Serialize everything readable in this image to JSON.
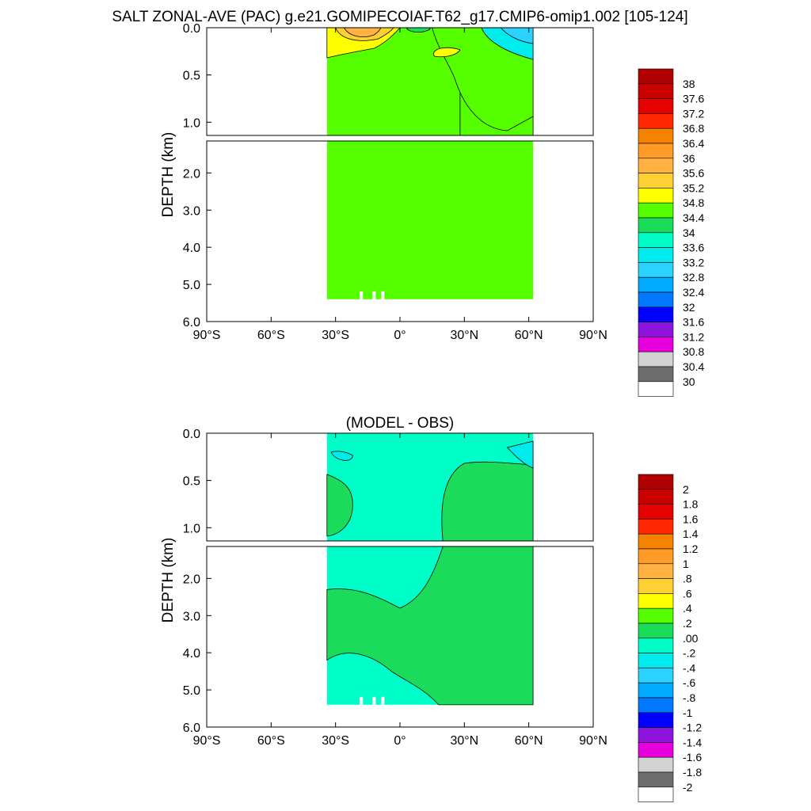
{
  "figure": {
    "title": "SALT ZONAL-AVE (PAC) g.e21.GOMIPECOIAF.T62_g17.CMIP6-omip1.002 [105-124]"
  },
  "chart_data": [
    {
      "type": "heatmap",
      "title": "",
      "ylabel": "DEPTH (km)",
      "xlabel": "",
      "x_range": [
        -90,
        90
      ],
      "y_range": [
        0,
        6
      ],
      "y_break": 1.14,
      "y_ticks_upper": [
        "0.0",
        "0.5",
        "1.0"
      ],
      "y_ticks_lower": [
        "2.0",
        "3.0",
        "4.0",
        "5.0",
        "6.0"
      ],
      "x_ticks": [
        "90°S",
        "60°S",
        "30°S",
        "0°",
        "30°N",
        "60°N",
        "90°N"
      ],
      "data_extent": {
        "lat_min": -34,
        "lat_max": 62,
        "max_depth_km": 5.4
      },
      "dominant_field_value": 34.6,
      "colorbar": {
        "labels": [
          "38",
          "37.6",
          "37.2",
          "36.8",
          "36.4",
          "36",
          "35.6",
          "35.2",
          "34.8",
          "34.4",
          "34",
          "33.6",
          "33.2",
          "32.8",
          "32.4",
          "32",
          "31.6",
          "31.2",
          "30.8",
          "30.4",
          "30"
        ],
        "colors": [
          "#b00000",
          "#c80000",
          "#e60000",
          "#ff2800",
          "#f58200",
          "#ff9b28",
          "#ffb142",
          "#ffd033",
          "#ffff00",
          "#55ff00",
          "#1adc5a",
          "#00ffc8",
          "#00ebeb",
          "#2ad3ff",
          "#00aaff",
          "#0078ff",
          "#0000ff",
          "#8c14dc",
          "#e600dc",
          "#d2d2d2",
          "#6e6e6e",
          "#ffffff"
        ]
      }
    },
    {
      "type": "heatmap",
      "title": "(MODEL - OBS)",
      "ylabel": "DEPTH (km)",
      "xlabel": "",
      "x_range": [
        -90,
        90
      ],
      "y_range": [
        0,
        6
      ],
      "y_break": 1.14,
      "y_ticks_upper": [
        "0.0",
        "0.5",
        "1.0"
      ],
      "y_ticks_lower": [
        "2.0",
        "3.0",
        "4.0",
        "5.0",
        "6.0"
      ],
      "x_ticks": [
        "90°S",
        "60°S",
        "30°S",
        "0°",
        "30°N",
        "60°N",
        "90°N"
      ],
      "data_extent": {
        "lat_min": -34,
        "lat_max": 62,
        "max_depth_km": 5.4
      },
      "colorbar": {
        "labels": [
          "2",
          "1.8",
          "1.6",
          "1.4",
          "1.2",
          "1",
          ".8",
          ".6",
          ".4",
          ".2",
          ".00",
          "-.2",
          "-.4",
          "-.6",
          "-.8",
          "-1",
          "-1.2",
          "-1.4",
          "-1.6",
          "-1.8",
          "-2"
        ],
        "colors": [
          "#b00000",
          "#c80000",
          "#e60000",
          "#ff2800",
          "#f58200",
          "#ff9b28",
          "#ffb142",
          "#ffd033",
          "#ffff00",
          "#55ff00",
          "#1adc5a",
          "#00ffc8",
          "#00ebeb",
          "#2ad3ff",
          "#00aaff",
          "#0078ff",
          "#0000ff",
          "#8c14dc",
          "#e600dc",
          "#d2d2d2",
          "#6e6e6e",
          "#ffffff"
        ]
      }
    }
  ]
}
